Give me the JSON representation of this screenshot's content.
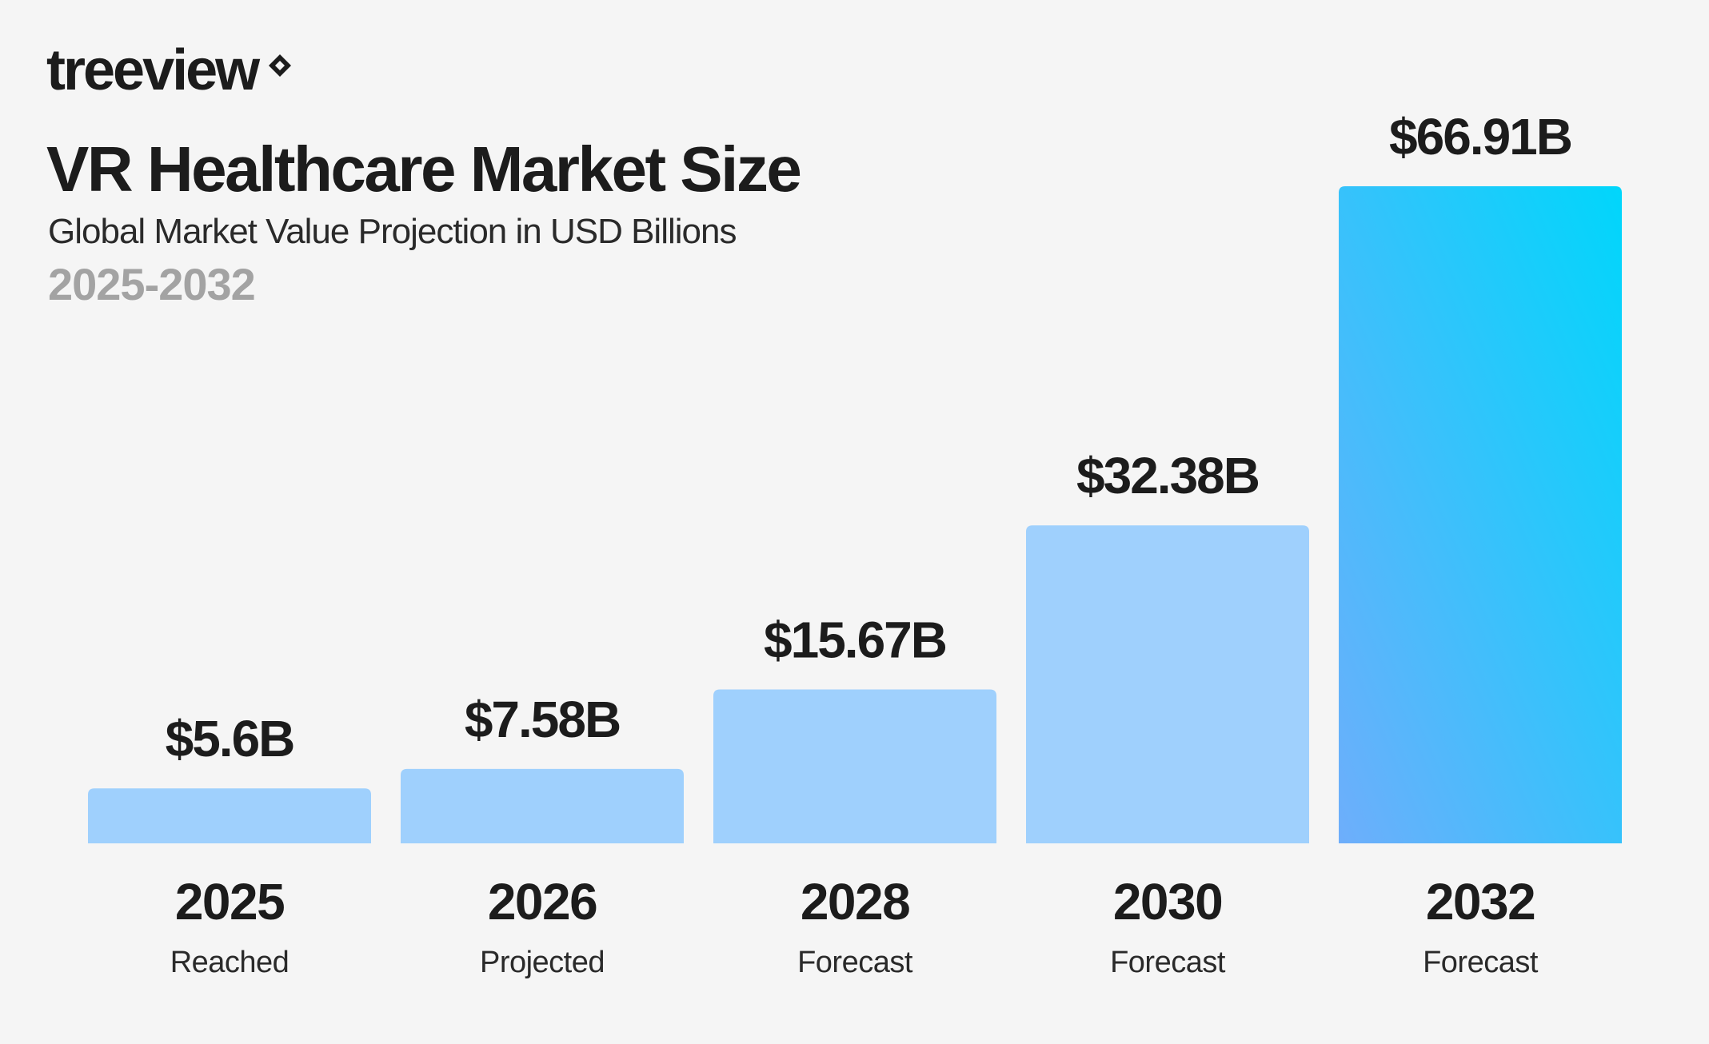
{
  "brand": {
    "name": "treeview",
    "icon": "diamond-logo-icon"
  },
  "chart_data": {
    "type": "bar",
    "title": "VR Healthcare Market Size",
    "subtitle": "Global Market Value Projection in USD Billions",
    "period": "2025-2032",
    "categories": [
      "2025",
      "2026",
      "2028",
      "2030",
      "2032"
    ],
    "status_labels": [
      "Reached",
      "Projected",
      "Forecast",
      "Forecast",
      "Forecast"
    ],
    "values": [
      5.6,
      7.58,
      15.67,
      32.38,
      66.91
    ],
    "value_labels": [
      "$5.6B",
      "$7.58B",
      "$15.67B",
      "$32.38B",
      "$66.91B"
    ],
    "ylim": [
      0,
      66.91
    ],
    "grid": false,
    "highlight_index": 4,
    "colors": {
      "bar": "#9fd0fd",
      "highlight_top": "#00d6fb",
      "highlight_bottom": "#6eaefb",
      "text": "#1c1c1c",
      "muted": "#a3a3a3"
    }
  }
}
